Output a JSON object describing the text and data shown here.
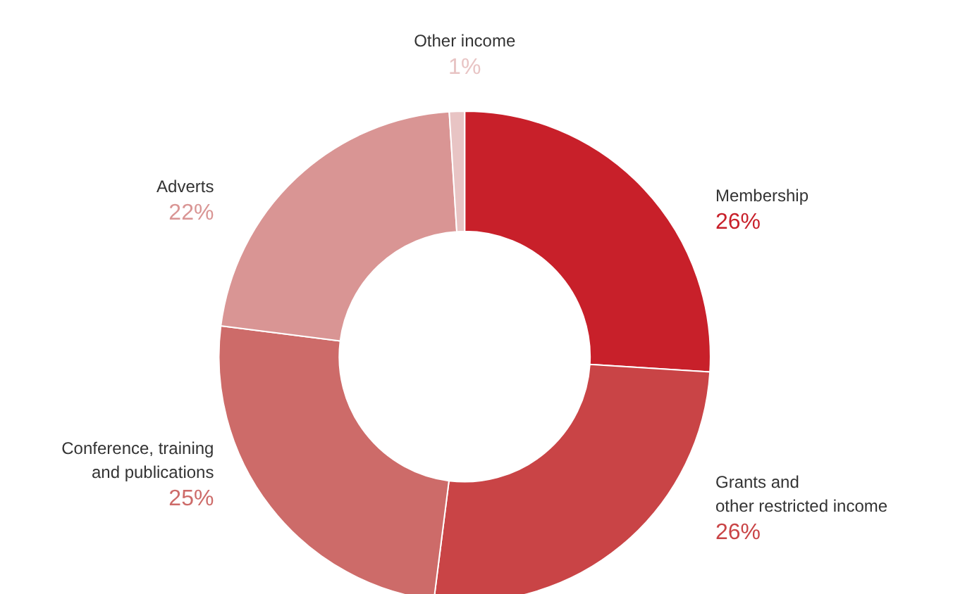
{
  "chart_data": {
    "type": "donut",
    "categories": [
      "Membership",
      "Grants and\nother restricted income",
      "Conference, training\nand publications",
      "Adverts",
      "Other income"
    ],
    "values": [
      26,
      26,
      25,
      22,
      1
    ],
    "colors": [
      "#c8202a",
      "#c94446",
      "#cd6b69",
      "#d99594",
      "#e8c4c4"
    ],
    "value_labels": [
      "26%",
      "26%",
      "25%",
      "22%",
      "1%"
    ]
  }
}
